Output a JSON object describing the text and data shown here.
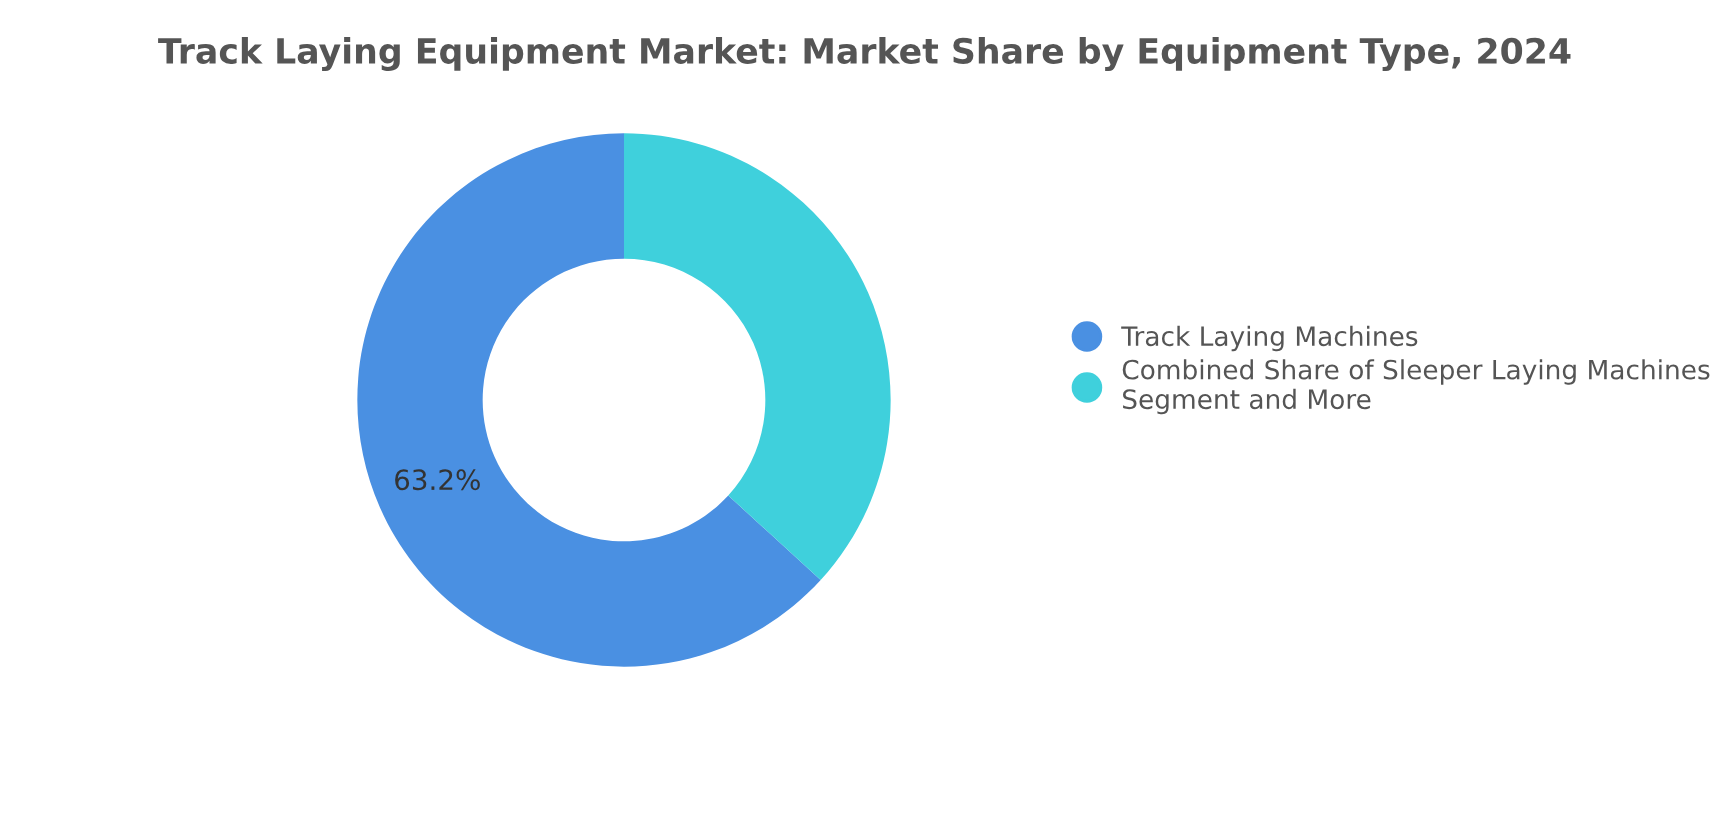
{
  "chart_data": {
    "type": "donut",
    "title": "Track Laying Equipment Market: Market Share by Equipment Type, 2024",
    "categories": [
      "Track Laying Machines",
      "Combined Share of Sleeper Laying Machines\nSegment and More"
    ],
    "values": [
      63.2,
      36.8
    ],
    "colors": [
      "#4a90e2",
      "#3fd0dc"
    ],
    "value_labels": [
      "63.2%",
      null
    ],
    "legend": "right"
  }
}
